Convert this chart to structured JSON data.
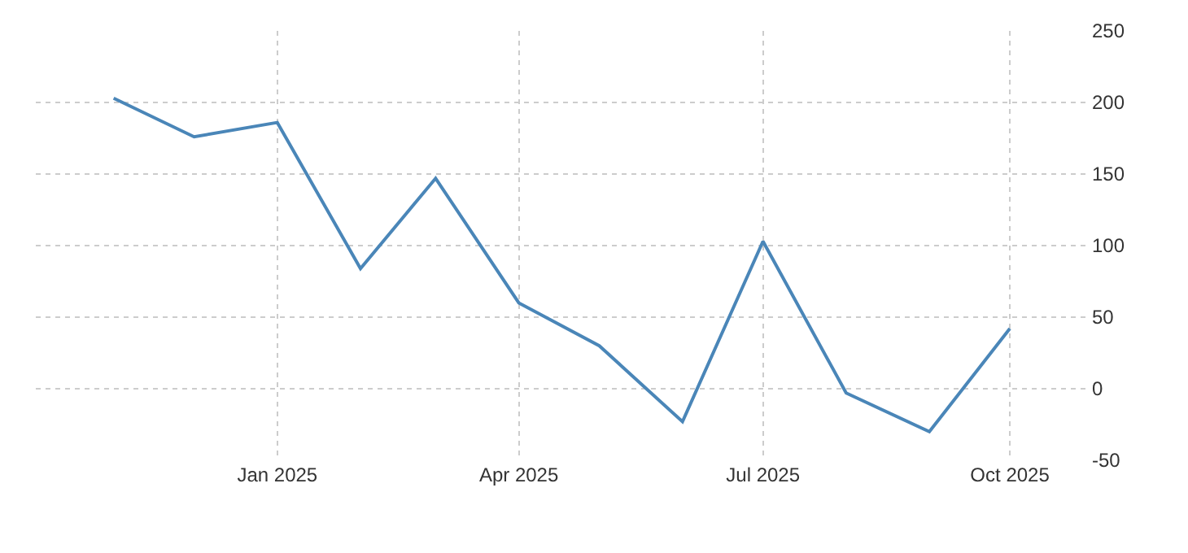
{
  "chart_data": {
    "type": "line",
    "x": [
      "2024-11",
      "2024-12",
      "2025-01",
      "2025-02",
      "2025-03",
      "2025-04",
      "2025-05",
      "2025-06",
      "2025-07",
      "2025-08",
      "2025-09",
      "2025-10"
    ],
    "series": [
      {
        "color": "#4a86b8",
        "values": [
          203,
          176,
          186,
          84,
          147,
          60,
          30,
          -23,
          103,
          -3,
          -30,
          42
        ]
      }
    ],
    "xlim": [
      "2024-10-03",
      "2025-10-31"
    ],
    "xticks": [
      {
        "value": "2025-01",
        "label": "Jan 2025"
      },
      {
        "value": "2025-04",
        "label": "Apr 2025"
      },
      {
        "value": "2025-07",
        "label": "Jul 2025"
      },
      {
        "value": "2025-10",
        "label": "Oct 2025"
      }
    ],
    "ylim": [
      -50,
      250
    ],
    "yticks": [
      -50,
      0,
      50,
      100,
      150,
      200,
      250
    ],
    "grid": true,
    "marker": "none",
    "line_style": "solid"
  }
}
